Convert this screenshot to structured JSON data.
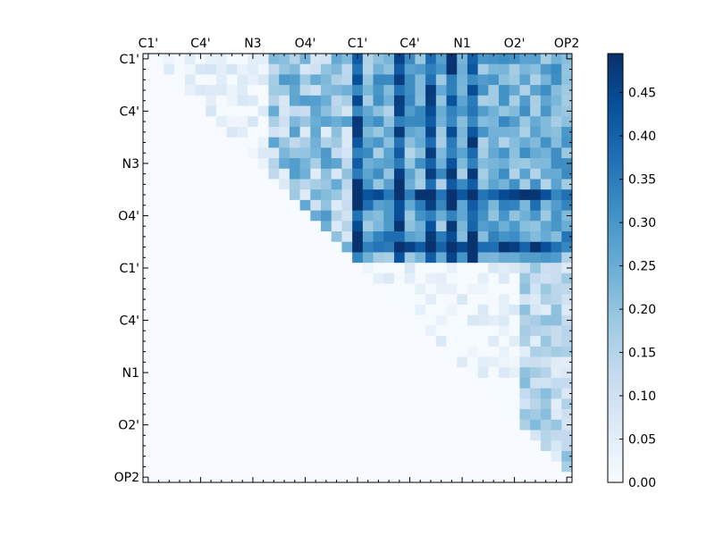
{
  "chart_data": {
    "type": "heatmap",
    "title": "",
    "xlabel": "",
    "ylabel": "",
    "x_tick_labels": [
      "C1'",
      "C4'",
      "N3",
      "O4'",
      "C1'",
      "C4'",
      "N1",
      "O2'",
      "OP2"
    ],
    "y_tick_labels": [
      "C1'",
      "C4'",
      "N3",
      "O4'",
      "C1'",
      "C4'",
      "N1",
      "O2'",
      "OP2"
    ],
    "grid_size": 41,
    "tick_step": 5,
    "colorbar": {
      "ticks": [
        "0.00",
        "0.05",
        "0.10",
        "0.15",
        "0.20",
        "0.25",
        "0.30",
        "0.35",
        "0.40",
        "0.45"
      ],
      "tick_values": [
        0.0,
        0.05,
        0.1,
        0.15,
        0.2,
        0.25,
        0.3,
        0.35,
        0.4,
        0.45
      ],
      "range": [
        0.0,
        0.495
      ],
      "colormap": "Blues"
    },
    "matrix_description": "upper-triangular contact/difference matrix; values approx",
    "blocks": {
      "upper_left_triangle": "low 0.02-0.30 with scattered medium cells",
      "upper_right_block": "medium-high 0.15-0.49, strong rows 13 and 18 and strong columns 20,24,27,29,31",
      "lower_right_triangle": "low 0.02-0.22"
    }
  }
}
